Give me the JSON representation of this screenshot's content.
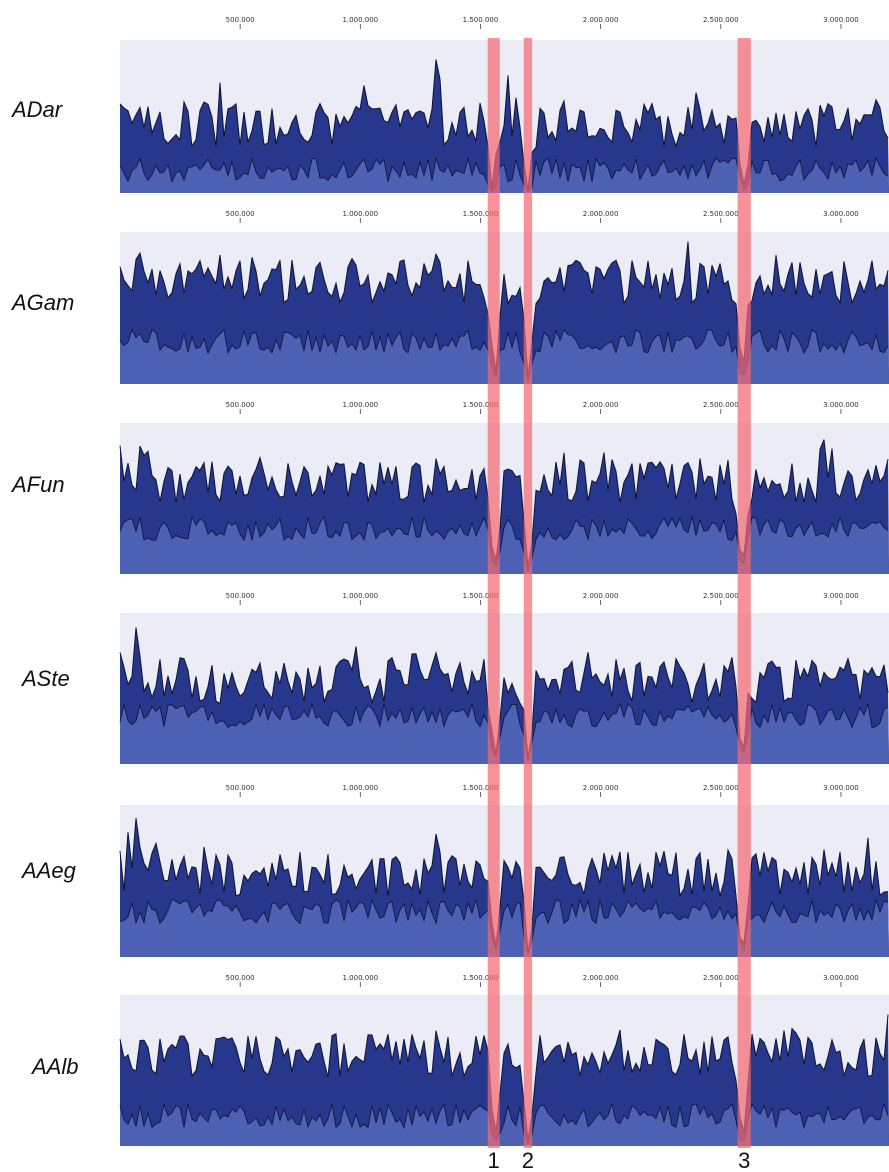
{
  "chart_data": {
    "type": "area",
    "x_axis": {
      "ticks": [
        500000,
        1000000,
        1500000,
        2000000,
        2500000,
        3000000
      ],
      "tick_labels": [
        "500.000",
        "1.000.000",
        "1.500.000",
        "2.000.000",
        "2.500.000",
        "3.000.000"
      ],
      "xlim": [
        0,
        3200000
      ]
    },
    "panels": [
      {
        "label": "ADar",
        "tick_count": 6,
        "level_top": 0.45,
        "level_inner": 0.15,
        "spikes": [
          {
            "x": 1320000,
            "value": 0.97
          }
        ],
        "dips": [
          1550000,
          1700000,
          2600000
        ]
      },
      {
        "label": "AGam",
        "tick_count": 6,
        "level_top": 0.68,
        "level_inner": 0.28,
        "spikes": [
          {
            "x": 1320000,
            "value": 0.95
          },
          {
            "x": 70000,
            "value": 0.88
          }
        ],
        "dips": [
          1560000,
          1700000,
          2590000
        ]
      },
      {
        "label": "AFun",
        "tick_count": 6,
        "level_top": 0.62,
        "level_inner": 0.3,
        "spikes": [
          {
            "x": 90000,
            "value": 0.98
          },
          {
            "x": 1320000,
            "value": 0.85
          },
          {
            "x": 2960000,
            "value": 0.88
          }
        ],
        "dips": [
          1560000,
          1700000,
          2590000
        ]
      },
      {
        "label": "ASte",
        "tick_count": 6,
        "level_top": 0.55,
        "level_inner": 0.32,
        "spikes": [
          {
            "x": 70000,
            "value": 0.97
          },
          {
            "x": 1320000,
            "value": 0.82
          }
        ],
        "dips": [
          1560000,
          1700000,
          2590000
        ]
      },
      {
        "label": "AAeg",
        "tick_count": 6,
        "level_top": 0.55,
        "level_inner": 0.3,
        "spikes": [
          {
            "x": 70000,
            "value": 0.98
          },
          {
            "x": 1320000,
            "value": 0.9
          }
        ],
        "dips": [
          1560000,
          1700000,
          2590000
        ]
      },
      {
        "label": "AAlb",
        "tick_count": 6,
        "level_top": 0.6,
        "level_inner": 0.2,
        "spikes": [
          {
            "x": 1320000,
            "value": 0.85
          },
          {
            "x": 3200000,
            "value": 0.95
          }
        ],
        "dips": [
          1560000,
          1700000,
          2590000
        ]
      }
    ],
    "highlight_regions": [
      {
        "label": "1",
        "x_start": 1530000,
        "x_end": 1580000
      },
      {
        "label": "2",
        "x_start": 1680000,
        "x_end": 1715000
      },
      {
        "label": "3",
        "x_start": 2570000,
        "x_end": 2625000
      }
    ],
    "colors": {
      "panel_background": "#ececf6",
      "outer_fill": "#26378c",
      "inner_fill": "#4c61b4",
      "highlight": "#f26a73",
      "outline": "#0d1233"
    }
  }
}
